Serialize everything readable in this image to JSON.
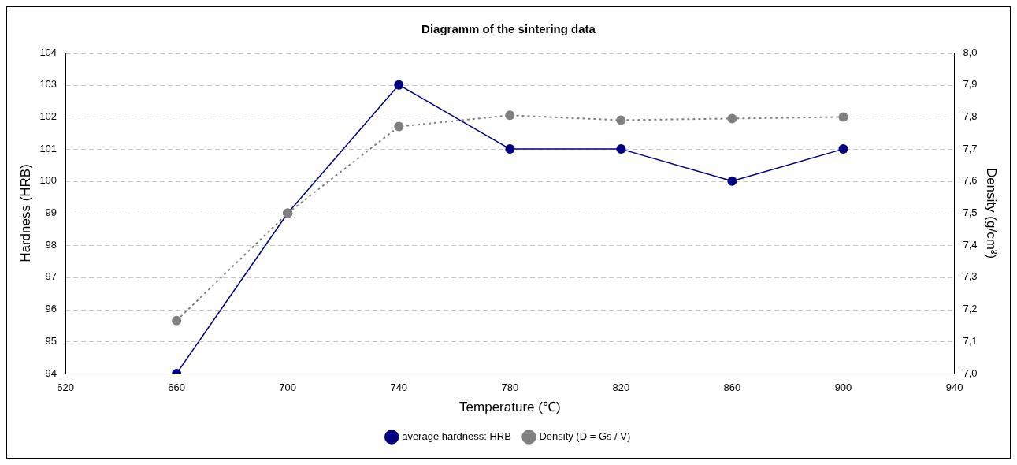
{
  "chart_data": {
    "type": "line",
    "title": "Diagramm of the sintering data",
    "xlabel": "Temperature (℃)",
    "ylabel": "Hardness (HRB)",
    "y2label": "Density (g/cm³)",
    "x": [
      660,
      700,
      740,
      780,
      820,
      860,
      900
    ],
    "series": [
      {
        "name": "average hardness: HRB",
        "color": "#000080",
        "values": [
          94,
          99,
          103,
          101,
          101,
          100,
          101
        ],
        "line_style": "solid"
      },
      {
        "name": "Density (D = Gs / V)",
        "color": "#808080",
        "axis": "y2",
        "values": [
          7.165,
          7.5,
          7.77,
          7.805,
          7.79,
          7.795,
          7.8
        ],
        "line_style": "dotted"
      }
    ],
    "xlim": [
      620,
      940
    ],
    "xticks": [
      620,
      660,
      700,
      740,
      780,
      820,
      860,
      900,
      940
    ],
    "ylim": [
      94,
      104
    ],
    "yticks": [
      94,
      95,
      96,
      97,
      98,
      99,
      100,
      101,
      102,
      103,
      104
    ],
    "y2lim": [
      7.0,
      8.0
    ],
    "y2ticks": [
      {
        "value": 7.0,
        "label": "7,0"
      },
      {
        "value": 7.1,
        "label": "7,1"
      },
      {
        "value": 7.2,
        "label": "7,2"
      },
      {
        "value": 7.3,
        "label": "7,3"
      },
      {
        "value": 7.4,
        "label": "7,4"
      },
      {
        "value": 7.5,
        "label": "7,5"
      },
      {
        "value": 7.6,
        "label": "7,6"
      },
      {
        "value": 7.7,
        "label": "7,7"
      },
      {
        "value": 7.8,
        "label": "7,8"
      },
      {
        "value": 7.9,
        "label": "7,9"
      },
      {
        "value": 8.0,
        "label": "8,0"
      }
    ],
    "grid": "y",
    "legend": "bottom",
    "marker": "circle"
  }
}
